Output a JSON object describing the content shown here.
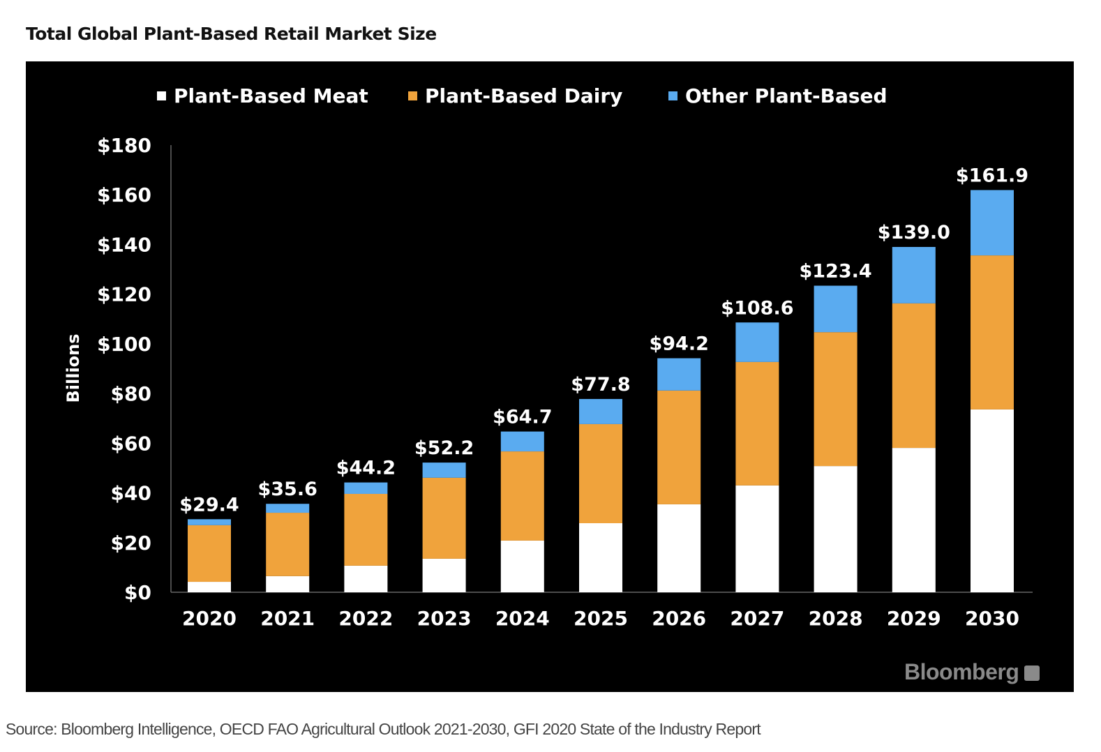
{
  "chart_data": {
    "type": "bar",
    "stacked": true,
    "title": "Total Global Plant-Based Retail Market Size",
    "ylabel": "Billions",
    "xlabel": "",
    "ylim": [
      0,
      180
    ],
    "yticks": [
      0,
      20,
      40,
      60,
      80,
      100,
      120,
      140,
      160,
      180
    ],
    "ytick_labels": [
      "$0",
      "$20",
      "$40",
      "$60",
      "$80",
      "$100",
      "$120",
      "$140",
      "$160",
      "$180"
    ],
    "grid": false,
    "legend_position": "top",
    "categories": [
      "2020",
      "2021",
      "2022",
      "2023",
      "2024",
      "2025",
      "2026",
      "2027",
      "2028",
      "2029",
      "2030"
    ],
    "series": [
      {
        "name": "Plant-Based Meat",
        "color": "#ffffff",
        "values": [
          4.2,
          6.5,
          10.7,
          13.5,
          20.8,
          27.8,
          35.4,
          43.0,
          50.8,
          58.1,
          73.6
        ]
      },
      {
        "name": "Plant-Based Dairy",
        "color": "#f0a33c",
        "values": [
          22.8,
          25.5,
          28.9,
          32.6,
          35.9,
          39.9,
          45.8,
          49.7,
          53.9,
          58.2,
          62.0
        ]
      },
      {
        "name": "Other Plant-Based",
        "color": "#5aabf0",
        "values": [
          2.4,
          3.6,
          4.6,
          6.1,
          8.0,
          10.1,
          13.0,
          15.9,
          18.7,
          22.7,
          26.3
        ]
      }
    ],
    "total_labels": [
      "$29.4",
      "$35.6",
      "$44.2",
      "$52.2",
      "$64.7",
      "$77.8",
      "$94.2",
      "$108.6",
      "$123.4",
      "$139.0",
      "$161.9"
    ],
    "totals": [
      29.4,
      35.6,
      44.2,
      52.2,
      64.7,
      77.8,
      94.2,
      108.6,
      123.4,
      139.0,
      161.9
    ]
  },
  "watermark": "Bloomberg",
  "source": "Source: Bloomberg Intelligence, OECD FAO Agricultural Outlook 2021-2030, GFI 2020 State of the Industry Report"
}
